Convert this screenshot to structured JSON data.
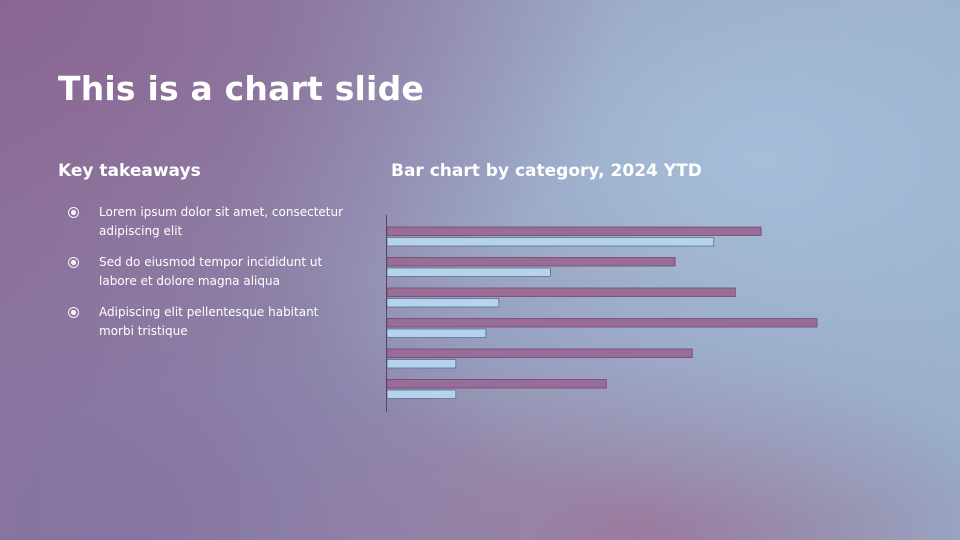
{
  "slide": {
    "title": "This is a chart slide"
  },
  "takeaways": {
    "heading": "Key takeaways",
    "items": [
      "Lorem ipsum dolor sit amet, consectetur adipiscing elit",
      "Sed do eiusmod tempor incididunt ut labore et dolore magna aliqua",
      "Adipiscing elit pellentesque habitant morbi tristique"
    ],
    "bullet_icon": "radio-dot-icon"
  },
  "chart_section": {
    "heading": "Bar chart by category, 2024 YTD"
  },
  "colors": {
    "series_a": "#9a6d98",
    "series_b": "#b6d3ec",
    "axis": "#544764",
    "text": "#ffffff"
  },
  "chart_data": {
    "type": "bar",
    "orientation": "horizontal",
    "title": "Bar chart by category, 2024 YTD",
    "categories": [
      "",
      "",
      "",
      "",
      "",
      ""
    ],
    "series": [
      {
        "values": [
          87,
          67,
          81,
          100,
          71,
          51
        ]
      },
      {
        "values": [
          76,
          38,
          26,
          23,
          16,
          16
        ]
      }
    ],
    "xlim": [
      0,
      100
    ],
    "grid": false,
    "legend": "none",
    "value_axis_visible": false
  }
}
